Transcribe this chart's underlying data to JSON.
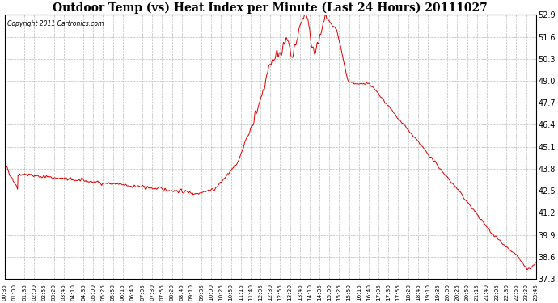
{
  "title": "Outdoor Temp (vs) Heat Index per Minute (Last 24 Hours) 20111027",
  "copyright": "Copyright 2011 Cartronics.com",
  "ylim": [
    37.3,
    52.9
  ],
  "yticks": [
    52.9,
    51.6,
    50.3,
    49.0,
    47.7,
    46.4,
    45.1,
    43.8,
    42.5,
    41.2,
    39.9,
    38.6,
    37.3
  ],
  "line_color": "#dd0000",
  "bg_color": "#ffffff",
  "grid_color": "#bbbbbb",
  "x_labels": [
    "00:35",
    "01:00",
    "01:35",
    "02:00",
    "02:55",
    "03:20",
    "03:45",
    "04:10",
    "04:35",
    "05:00",
    "05:25",
    "05:50",
    "06:15",
    "06:40",
    "07:05",
    "07:30",
    "07:55",
    "08:20",
    "08:45",
    "09:10",
    "09:35",
    "10:00",
    "10:25",
    "10:50",
    "11:15",
    "11:40",
    "12:05",
    "12:30",
    "12:55",
    "13:20",
    "13:45",
    "14:10",
    "14:35",
    "15:00",
    "15:25",
    "15:50",
    "16:15",
    "16:40",
    "17:05",
    "17:30",
    "17:55",
    "18:20",
    "18:45",
    "19:10",
    "19:35",
    "20:00",
    "20:25",
    "20:50",
    "21:15",
    "21:40",
    "22:05",
    "22:30",
    "22:55",
    "23:20",
    "23:45"
  ],
  "n_points": 1440
}
